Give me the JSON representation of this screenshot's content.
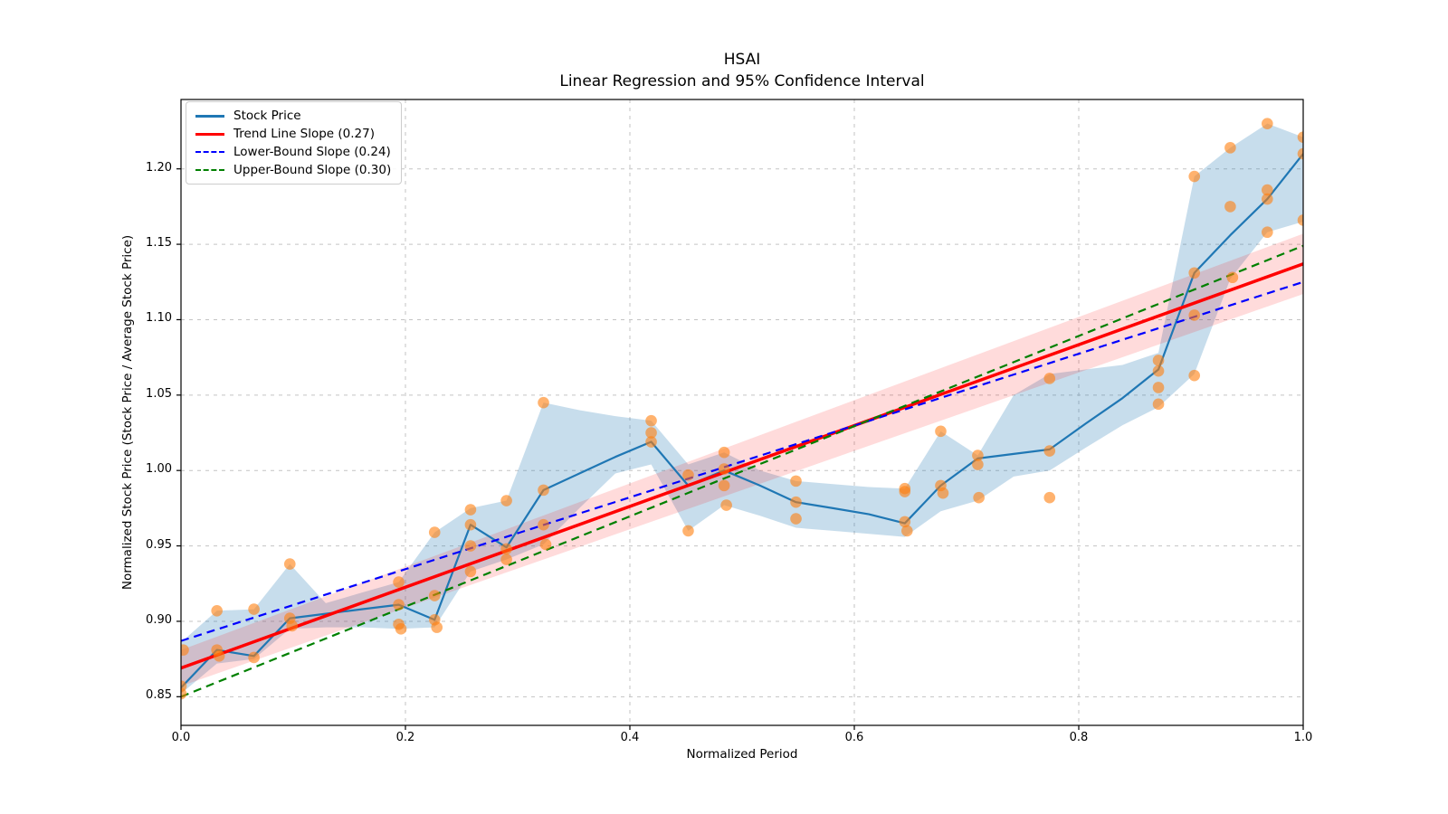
{
  "window": {
    "background": "#ffffff"
  },
  "title": {
    "line1": "HSAI",
    "line2": "Linear Regression and 95% Confidence Interval"
  },
  "axes": {
    "xlabel": "Normalized Period",
    "ylabel": "Normalized Stock Price (Stock Price / Average Stock Price)",
    "x_ticks": [
      "0.0",
      "0.2",
      "0.4",
      "0.6",
      "0.8",
      "1.0"
    ],
    "x_tick_values": [
      0,
      0.2,
      0.4,
      0.6,
      0.8,
      1.0
    ],
    "y_ticks": [
      "0.85",
      "0.90",
      "0.95",
      "1.00",
      "1.05",
      "1.10",
      "1.15",
      "1.20"
    ],
    "y_tick_values": [
      0.85,
      0.9,
      0.95,
      1.0,
      1.05,
      1.1,
      1.15,
      1.2
    ],
    "xlim": [
      0,
      1
    ],
    "ylim": [
      0.831,
      1.246
    ],
    "grid": true,
    "grid_color": "#c3c3c3",
    "spine_color": "#000000"
  },
  "legend": {
    "position": "upper-left",
    "items": [
      {
        "label": "Stock Price",
        "color": "#1f77b4",
        "dash": "solid"
      },
      {
        "label": "Trend Line Slope (0.27)",
        "color": "#ff0000",
        "dash": "solid"
      },
      {
        "label": "Lower-Bound Slope (0.24)",
        "color": "#0000ff",
        "dash": "dashed"
      },
      {
        "label": "Upper-Bound Slope (0.30)",
        "color": "#008000",
        "dash": "dashed"
      }
    ]
  },
  "chart_data": {
    "type": "line",
    "title": "HSAI",
    "subtitle": "Linear Regression and 95% Confidence Interval",
    "xlabel": "Normalized Period",
    "ylabel": "Normalized Stock Price (Stock Price / Average Stock Price)",
    "xlim": [
      0,
      1
    ],
    "ylim": [
      0.831,
      1.246
    ],
    "grid": true,
    "legend_position": "upper-left",
    "series": [
      {
        "name": "Stock Price",
        "data_name": "stock-price-line",
        "color": "#1f77b4",
        "style": "solid",
        "width": 2.2,
        "x": [
          0.0,
          0.032,
          0.065,
          0.097,
          0.129,
          0.161,
          0.194,
          0.226,
          0.258,
          0.29,
          0.323,
          0.355,
          0.387,
          0.419,
          0.452,
          0.484,
          0.516,
          0.548,
          0.581,
          0.613,
          0.645,
          0.677,
          0.71,
          0.742,
          0.774,
          0.806,
          0.839,
          0.871,
          0.903,
          0.935,
          0.968,
          1.0
        ],
        "y": [
          0.856,
          0.881,
          0.877,
          0.902,
          0.905,
          0.908,
          0.911,
          0.901,
          0.964,
          0.949,
          0.987,
          0.998,
          1.009,
          1.019,
          0.99,
          1.0,
          0.99,
          0.979,
          0.975,
          0.971,
          0.965,
          0.99,
          1.008,
          1.011,
          1.014,
          1.031,
          1.048,
          1.067,
          1.131,
          1.156,
          1.18,
          1.21
        ]
      },
      {
        "name": "Trend Line Slope (0.27)",
        "data_name": "trend-line",
        "color": "#ff0000",
        "style": "solid",
        "width": 3.5,
        "slope": 0.27,
        "x": [
          0,
          1
        ],
        "y": [
          0.869,
          1.137
        ]
      },
      {
        "name": "Lower-Bound Slope (0.24)",
        "data_name": "lower-bound-line",
        "color": "#0000ff",
        "style": "dashed",
        "width": 2.2,
        "slope": 0.24,
        "x": [
          0,
          1
        ],
        "y": [
          0.887,
          1.125
        ]
      },
      {
        "name": "Upper-Bound Slope (0.30)",
        "data_name": "upper-bound-line",
        "color": "#008000",
        "style": "dashed",
        "width": 2.2,
        "slope": 0.3,
        "x": [
          0,
          1
        ],
        "y": [
          0.85,
          1.149
        ]
      }
    ],
    "bands": [
      {
        "name": "stock-price-minmax-band",
        "color": "#1f77b4",
        "opacity": 0.25,
        "x": [
          0.0,
          0.032,
          0.065,
          0.097,
          0.129,
          0.161,
          0.194,
          0.226,
          0.258,
          0.29,
          0.323,
          0.355,
          0.387,
          0.419,
          0.452,
          0.484,
          0.516,
          0.548,
          0.581,
          0.613,
          0.645,
          0.677,
          0.71,
          0.742,
          0.774,
          0.806,
          0.839,
          0.871,
          0.903,
          0.935,
          0.968,
          1.0
        ],
        "upper": [
          0.886,
          0.907,
          0.908,
          0.938,
          0.912,
          0.919,
          0.926,
          0.959,
          0.975,
          0.98,
          1.045,
          1.04,
          1.036,
          1.033,
          1.004,
          1.012,
          1.0,
          0.993,
          0.991,
          0.989,
          0.988,
          1.026,
          1.01,
          1.05,
          1.064,
          1.067,
          1.07,
          1.078,
          1.195,
          1.214,
          1.23,
          1.221
        ],
        "lower": [
          0.852,
          0.872,
          0.875,
          0.895,
          0.896,
          0.896,
          0.895,
          0.896,
          0.933,
          0.941,
          0.951,
          0.975,
          0.998,
          1.004,
          0.96,
          0.977,
          0.97,
          0.962,
          0.96,
          0.958,
          0.956,
          0.973,
          0.98,
          0.996,
          1.0,
          1.015,
          1.03,
          1.042,
          1.064,
          1.127,
          1.158,
          1.165
        ]
      },
      {
        "name": "confidence-interval-band",
        "color": "#ff0000",
        "opacity": 0.14,
        "x": [
          0,
          1
        ],
        "upper": [
          0.881,
          1.157
        ],
        "lower": [
          0.857,
          1.117
        ]
      }
    ],
    "scatter": {
      "name": "daily-price-points",
      "color": "#ff7f0e",
      "opacity": 0.6,
      "radius": 6.3,
      "points": [
        [
          0.0,
          0.857
        ],
        [
          0.0,
          0.852
        ],
        [
          0.002,
          0.881
        ],
        [
          0.032,
          0.907
        ],
        [
          0.032,
          0.881
        ],
        [
          0.034,
          0.877
        ],
        [
          0.065,
          0.908
        ],
        [
          0.065,
          0.876
        ],
        [
          0.097,
          0.938
        ],
        [
          0.097,
          0.902
        ],
        [
          0.099,
          0.897
        ],
        [
          0.194,
          0.926
        ],
        [
          0.194,
          0.911
        ],
        [
          0.194,
          0.898
        ],
        [
          0.196,
          0.895
        ],
        [
          0.226,
          0.959
        ],
        [
          0.226,
          0.917
        ],
        [
          0.226,
          0.901
        ],
        [
          0.228,
          0.896
        ],
        [
          0.258,
          0.974
        ],
        [
          0.258,
          0.964
        ],
        [
          0.258,
          0.95
        ],
        [
          0.258,
          0.933
        ],
        [
          0.29,
          0.98
        ],
        [
          0.29,
          0.948
        ],
        [
          0.29,
          0.941
        ],
        [
          0.323,
          1.045
        ],
        [
          0.323,
          0.987
        ],
        [
          0.323,
          0.964
        ],
        [
          0.325,
          0.951
        ],
        [
          0.419,
          1.033
        ],
        [
          0.419,
          1.025
        ],
        [
          0.419,
          1.019
        ],
        [
          0.452,
          0.997
        ],
        [
          0.452,
          0.96
        ],
        [
          0.484,
          1.012
        ],
        [
          0.484,
          1.001
        ],
        [
          0.484,
          0.99
        ],
        [
          0.486,
          0.977
        ],
        [
          0.548,
          0.993
        ],
        [
          0.548,
          0.979
        ],
        [
          0.548,
          0.968
        ],
        [
          0.645,
          0.988
        ],
        [
          0.645,
          0.986
        ],
        [
          0.645,
          0.966
        ],
        [
          0.647,
          0.96
        ],
        [
          0.677,
          1.026
        ],
        [
          0.677,
          0.99
        ],
        [
          0.679,
          0.985
        ],
        [
          0.71,
          1.01
        ],
        [
          0.71,
          1.004
        ],
        [
          0.711,
          0.982
        ],
        [
          0.774,
          1.061
        ],
        [
          0.774,
          1.013
        ],
        [
          0.774,
          0.982
        ],
        [
          0.871,
          1.073
        ],
        [
          0.871,
          1.066
        ],
        [
          0.871,
          1.055
        ],
        [
          0.871,
          1.044
        ],
        [
          0.903,
          1.195
        ],
        [
          0.903,
          1.131
        ],
        [
          0.903,
          1.103
        ],
        [
          0.903,
          1.063
        ],
        [
          0.935,
          1.214
        ],
        [
          0.935,
          1.175
        ],
        [
          0.937,
          1.128
        ],
        [
          0.968,
          1.23
        ],
        [
          0.968,
          1.186
        ],
        [
          0.968,
          1.18
        ],
        [
          0.968,
          1.158
        ],
        [
          1.0,
          1.221
        ],
        [
          1.0,
          1.21
        ],
        [
          1.0,
          1.166
        ]
      ]
    }
  }
}
